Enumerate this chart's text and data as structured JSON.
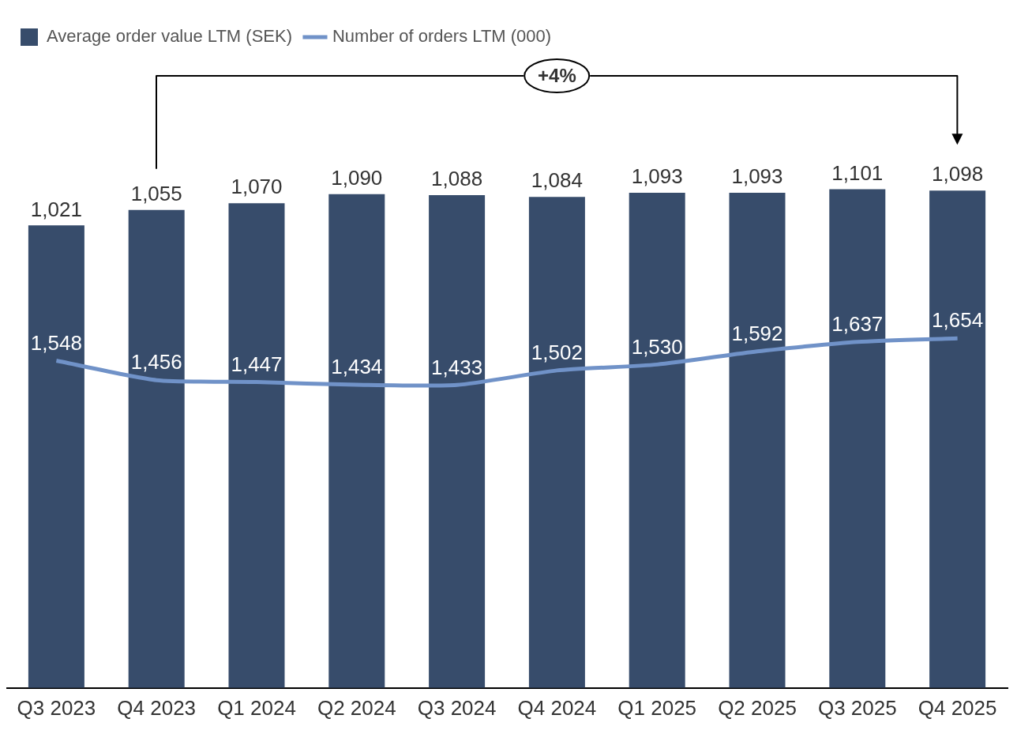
{
  "chart_data": {
    "type": "bar",
    "categories": [
      "Q3 2023",
      "Q4 2023",
      "Q1 2024",
      "Q2 2024",
      "Q3 2024",
      "Q4 2024",
      "Q1 2025",
      "Q2 2025",
      "Q3 2025",
      "Q4 2025"
    ],
    "series": [
      {
        "name": "Average order value LTM (SEK)",
        "color": "#374c6b",
        "values": [
          1021,
          1055,
          1070,
          1090,
          1088,
          1084,
          1093,
          1093,
          1101,
          1098
        ],
        "value_labels": [
          "1,021",
          "1,055",
          "1,070",
          "1,090",
          "1,088",
          "1,084",
          "1,093",
          "1,093",
          "1,101",
          "1,098"
        ]
      },
      {
        "name": "Number of orders LTM (000)",
        "type": "line",
        "axis": "y2",
        "color": "#7092c8",
        "values": [
          1548,
          1456,
          1447,
          1434,
          1433,
          1502,
          1530,
          1592,
          1637,
          1654
        ],
        "value_labels": [
          "1,548",
          "1,456",
          "1,447",
          "1,434",
          "1,433",
          "1,502",
          "1,530",
          "1,592",
          "1,637",
          "1,654"
        ]
      }
    ],
    "legend": "top left",
    "tick_labels": "x",
    "marker": "none",
    "annotations": [
      "+4%"
    ]
  }
}
